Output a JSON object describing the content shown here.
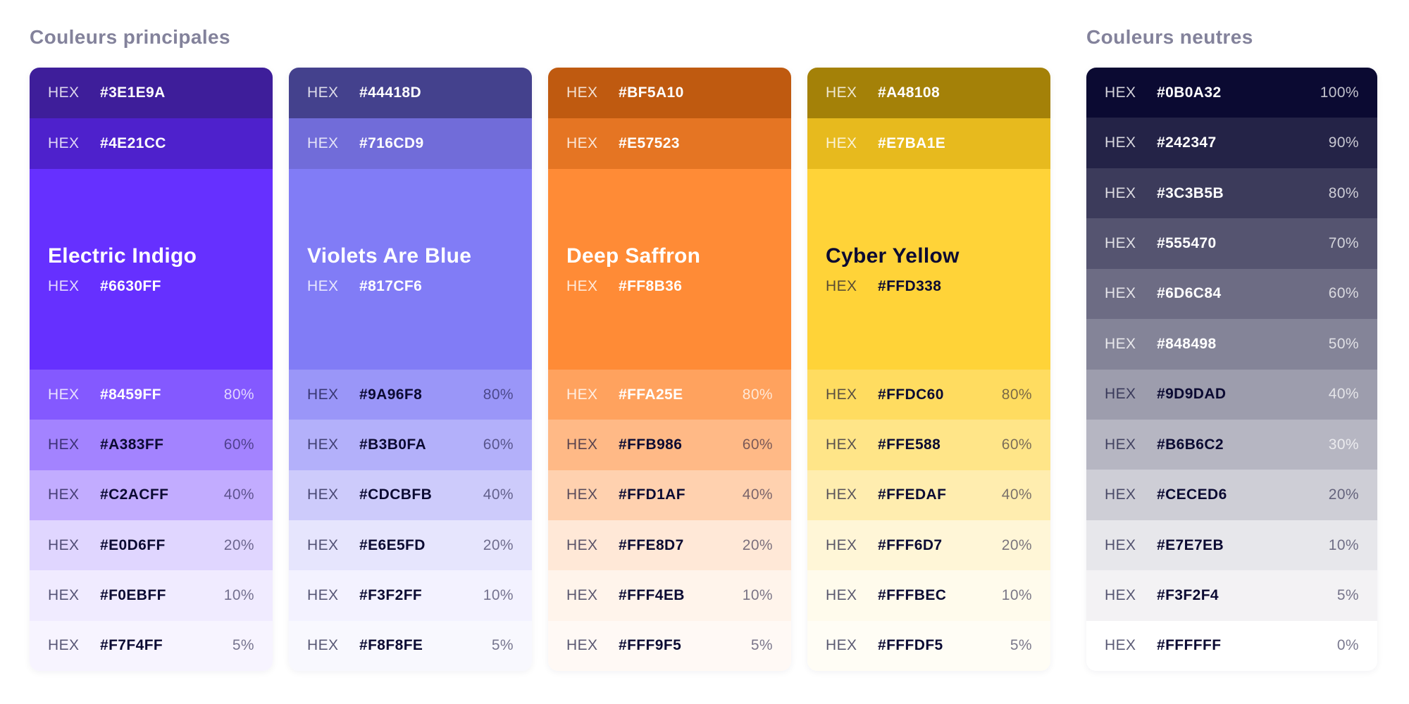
{
  "titles": {
    "principal": "Couleurs principales",
    "neutral": "Couleurs neutres"
  },
  "hex_label": "HEX",
  "palettes": [
    {
      "name": "Electric Indigo",
      "main": {
        "hex": "#6630FF",
        "text": "light"
      },
      "rows_top": [
        {
          "hex": "#3E1E9A",
          "text": "light"
        },
        {
          "hex": "#4E21CC",
          "text": "light"
        }
      ],
      "tints": [
        {
          "hex": "#8459FF",
          "pct": "80%",
          "text": "light"
        },
        {
          "hex": "#A383FF",
          "pct": "60%",
          "text": "dark"
        },
        {
          "hex": "#C2ACFF",
          "pct": "40%",
          "text": "dark"
        },
        {
          "hex": "#E0D6FF",
          "pct": "20%",
          "text": "dark"
        },
        {
          "hex": "#F0EBFF",
          "pct": "10%",
          "text": "dark"
        },
        {
          "hex": "#F7F4FF",
          "pct": "5%",
          "text": "dark"
        }
      ]
    },
    {
      "name": "Violets Are Blue",
      "main": {
        "hex": "#817CF6",
        "text": "light"
      },
      "rows_top": [
        {
          "hex": "#44418D",
          "text": "light"
        },
        {
          "hex": "#716CD9",
          "text": "light"
        }
      ],
      "tints": [
        {
          "hex": "#9A96F8",
          "pct": "80%",
          "text": "dark"
        },
        {
          "hex": "#B3B0FA",
          "pct": "60%",
          "text": "dark"
        },
        {
          "hex": "#CDCBFB",
          "pct": "40%",
          "text": "dark"
        },
        {
          "hex": "#E6E5FD",
          "pct": "20%",
          "text": "dark"
        },
        {
          "hex": "#F3F2FF",
          "pct": "10%",
          "text": "dark"
        },
        {
          "hex": "#F8F8FE",
          "pct": "5%",
          "text": "dark"
        }
      ]
    },
    {
      "name": "Deep Saffron",
      "main": {
        "hex": "#FF8B36",
        "text": "light"
      },
      "rows_top": [
        {
          "hex": "#BF5A10",
          "text": "light"
        },
        {
          "hex": "#E57523",
          "text": "light"
        }
      ],
      "tints": [
        {
          "hex": "#FFA25E",
          "pct": "80%",
          "text": "light"
        },
        {
          "hex": "#FFB986",
          "pct": "60%",
          "text": "dark"
        },
        {
          "hex": "#FFD1AF",
          "pct": "40%",
          "text": "dark"
        },
        {
          "hex": "#FFE8D7",
          "pct": "20%",
          "text": "dark"
        },
        {
          "hex": "#FFF4EB",
          "pct": "10%",
          "text": "dark"
        },
        {
          "hex": "#FFF9F5",
          "pct": "5%",
          "text": "dark"
        }
      ]
    },
    {
      "name": "Cyber Yellow",
      "main": {
        "hex": "#FFD338",
        "text": "dark"
      },
      "rows_top": [
        {
          "hex": "#A48108",
          "text": "light"
        },
        {
          "hex": "#E7BA1E",
          "text": "light"
        }
      ],
      "tints": [
        {
          "hex": "#FFDC60",
          "pct": "80%",
          "text": "dark"
        },
        {
          "hex": "#FFE588",
          "pct": "60%",
          "text": "dark"
        },
        {
          "hex": "#FFEDAF",
          "pct": "40%",
          "text": "dark"
        },
        {
          "hex": "#FFF6D7",
          "pct": "20%",
          "text": "dark"
        },
        {
          "hex": "#FFFBEC",
          "pct": "10%",
          "text": "dark"
        },
        {
          "hex": "#FFFDF5",
          "pct": "5%",
          "text": "dark"
        }
      ]
    }
  ],
  "neutrals": [
    {
      "hex": "#0B0A32",
      "pct": "100%",
      "text": "light"
    },
    {
      "hex": "#242347",
      "pct": "90%",
      "text": "light"
    },
    {
      "hex": "#3C3B5B",
      "pct": "80%",
      "text": "light"
    },
    {
      "hex": "#555470",
      "pct": "70%",
      "text": "light"
    },
    {
      "hex": "#6D6C84",
      "pct": "60%",
      "text": "light"
    },
    {
      "hex": "#848498",
      "pct": "50%",
      "text": "light"
    },
    {
      "hex": "#9D9DAD",
      "pct": "40%",
      "text": "dark",
      "pct_faded": true
    },
    {
      "hex": "#B6B6C2",
      "pct": "30%",
      "text": "dark",
      "pct_faded": true
    },
    {
      "hex": "#CECED6",
      "pct": "20%",
      "text": "dark"
    },
    {
      "hex": "#E7E7EB",
      "pct": "10%",
      "text": "dark"
    },
    {
      "hex": "#F3F2F4",
      "pct": "5%",
      "text": "dark"
    },
    {
      "hex": "#FFFFFF",
      "pct": "0%",
      "text": "dark"
    }
  ]
}
